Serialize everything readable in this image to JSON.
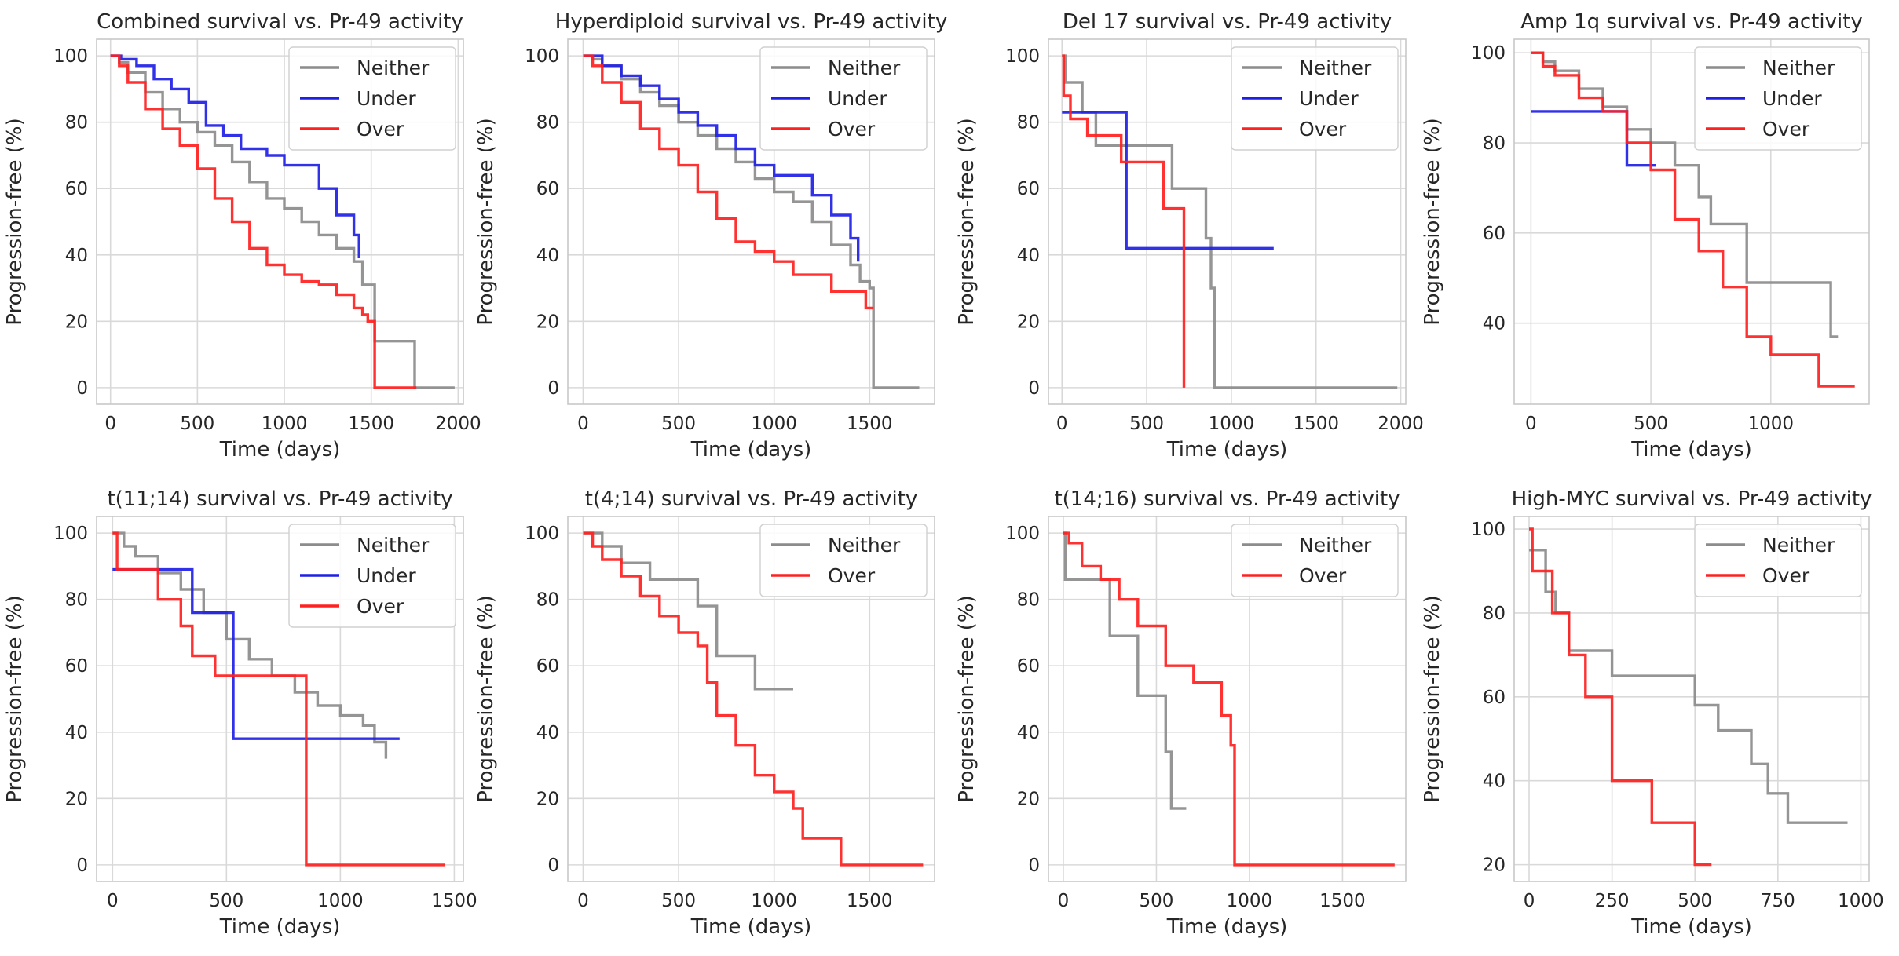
{
  "chart_data": [
    {
      "type": "line",
      "title": "Combined survival vs. Pr-49 activity",
      "xlabel": "Time (days)",
      "ylabel": "Progression-free (%)",
      "xlim": [
        -80,
        2030
      ],
      "ylim": [
        -5,
        105
      ],
      "xticks": [
        0,
        500,
        1000,
        1500,
        2000
      ],
      "yticks": [
        0,
        20,
        40,
        60,
        80,
        100
      ],
      "grid": true,
      "legend_position": "top-right",
      "series": [
        {
          "name": "Neither",
          "color": "#8c8c8c",
          "x": [
            0,
            50,
            100,
            200,
            300,
            400,
            500,
            600,
            700,
            800,
            900,
            1000,
            1100,
            1200,
            1300,
            1400,
            1450,
            1520,
            1750,
            1980
          ],
          "y": [
            100,
            98,
            95,
            89,
            84,
            80,
            77,
            73,
            68,
            62,
            57,
            54,
            50,
            46,
            42,
            38,
            31,
            14,
            0,
            0
          ]
        },
        {
          "name": "Under",
          "color": "#1f1fe6",
          "x": [
            0,
            60,
            150,
            250,
            350,
            450,
            550,
            650,
            750,
            900,
            1000,
            1050,
            1200,
            1300,
            1400,
            1430
          ],
          "y": [
            100,
            99,
            97,
            93,
            90,
            86,
            79,
            76,
            72,
            70,
            67,
            67,
            60,
            52,
            46,
            39
          ]
        },
        {
          "name": "Over",
          "color": "#ff2020",
          "x": [
            0,
            50,
            100,
            200,
            300,
            400,
            500,
            600,
            700,
            800,
            900,
            1000,
            1100,
            1200,
            1300,
            1400,
            1450,
            1480,
            1520,
            1760
          ],
          "y": [
            100,
            97,
            92,
            84,
            78,
            73,
            66,
            57,
            50,
            42,
            37,
            34,
            32,
            31,
            28,
            24,
            22,
            20,
            0,
            0
          ]
        }
      ]
    },
    {
      "type": "line",
      "title": "Hyperdiploid survival vs. Pr-49 activity",
      "xlabel": "Time (days)",
      "ylabel": "Progression-free (%)",
      "xlim": [
        -80,
        1840
      ],
      "ylim": [
        -5,
        105
      ],
      "xticks": [
        0,
        500,
        1000,
        1500
      ],
      "yticks": [
        0,
        20,
        40,
        60,
        80,
        100
      ],
      "grid": true,
      "legend_position": "top-right",
      "series": [
        {
          "name": "Neither",
          "color": "#8c8c8c",
          "x": [
            0,
            50,
            100,
            200,
            300,
            400,
            500,
            600,
            700,
            800,
            900,
            1000,
            1100,
            1200,
            1300,
            1400,
            1450,
            1500,
            1520,
            1760
          ],
          "y": [
            100,
            99,
            97,
            93,
            89,
            85,
            80,
            76,
            72,
            68,
            63,
            59,
            56,
            50,
            43,
            37,
            32,
            30,
            0,
            0
          ]
        },
        {
          "name": "Under",
          "color": "#1f1fe6",
          "x": [
            0,
            100,
            200,
            300,
            400,
            500,
            600,
            700,
            800,
            900,
            1000,
            1100,
            1200,
            1300,
            1400,
            1440
          ],
          "y": [
            100,
            97,
            94,
            91,
            87,
            83,
            79,
            76,
            72,
            67,
            64,
            64,
            58,
            52,
            45,
            38
          ]
        },
        {
          "name": "Over",
          "color": "#ff2020",
          "x": [
            0,
            50,
            100,
            200,
            300,
            400,
            500,
            600,
            700,
            800,
            900,
            1000,
            1100,
            1200,
            1300,
            1400,
            1480,
            1520
          ],
          "y": [
            100,
            97,
            92,
            86,
            78,
            72,
            67,
            59,
            51,
            44,
            41,
            38,
            34,
            34,
            29,
            29,
            24,
            24
          ]
        }
      ]
    },
    {
      "type": "line",
      "title": "Del 17 survival vs. Pr-49 activity",
      "xlabel": "Time (days)",
      "ylabel": "Progression-free (%)",
      "xlim": [
        -80,
        2030
      ],
      "ylim": [
        -5,
        105
      ],
      "xticks": [
        0,
        500,
        1000,
        1500,
        2000
      ],
      "yticks": [
        0,
        20,
        40,
        60,
        80,
        100
      ],
      "grid": true,
      "legend_position": "top-right",
      "series": [
        {
          "name": "Neither",
          "color": "#8c8c8c",
          "x": [
            0,
            20,
            120,
            200,
            450,
            650,
            850,
            880,
            900,
            1980
          ],
          "y": [
            100,
            92,
            83,
            73,
            73,
            60,
            45,
            30,
            0,
            0
          ]
        },
        {
          "name": "Under",
          "color": "#1f1fe6",
          "x": [
            0,
            380,
            1250
          ],
          "y": [
            83,
            42,
            42
          ]
        },
        {
          "name": "Over",
          "color": "#ff2020",
          "x": [
            0,
            10,
            50,
            150,
            350,
            600,
            720
          ],
          "y": [
            100,
            88,
            81,
            76,
            68,
            54,
            0
          ]
        }
      ]
    },
    {
      "type": "line",
      "title": "Amp 1q survival vs. Pr-49 activity",
      "xlabel": "Time (days)",
      "ylabel": "Progression-free (%)",
      "xlim": [
        -70,
        1410
      ],
      "ylim": [
        22,
        103
      ],
      "xticks": [
        0,
        500,
        1000
      ],
      "yticks": [
        40,
        60,
        80,
        100
      ],
      "grid": true,
      "legend_position": "top-right",
      "series": [
        {
          "name": "Neither",
          "color": "#8c8c8c",
          "x": [
            0,
            50,
            100,
            200,
            300,
            400,
            500,
            600,
            700,
            750,
            900,
            1250,
            1280
          ],
          "y": [
            100,
            98,
            96,
            92,
            88,
            83,
            80,
            75,
            68,
            62,
            49,
            37,
            37
          ]
        },
        {
          "name": "Under",
          "color": "#1f1fe6",
          "x": [
            0,
            380,
            400,
            520
          ],
          "y": [
            87,
            87,
            75,
            75
          ]
        },
        {
          "name": "Over",
          "color": "#ff2020",
          "x": [
            0,
            50,
            100,
            200,
            300,
            400,
            500,
            600,
            700,
            800,
            900,
            1000,
            1200,
            1350
          ],
          "y": [
            100,
            97,
            95,
            90,
            87,
            80,
            74,
            63,
            56,
            48,
            37,
            33,
            26,
            26
          ]
        }
      ]
    },
    {
      "type": "line",
      "title": "t(11;14) survival vs. Pr-49 activity",
      "xlabel": "Time (days)",
      "ylabel": "Progression-free (%)",
      "xlim": [
        -70,
        1540
      ],
      "ylim": [
        -5,
        105
      ],
      "xticks": [
        0,
        500,
        1000,
        1500
      ],
      "yticks": [
        0,
        20,
        40,
        60,
        80,
        100
      ],
      "grid": true,
      "legend_position": "top-right",
      "series": [
        {
          "name": "Neither",
          "color": "#8c8c8c",
          "x": [
            0,
            50,
            100,
            200,
            300,
            400,
            500,
            600,
            700,
            800,
            900,
            1000,
            1100,
            1150,
            1200
          ],
          "y": [
            100,
            96,
            93,
            88,
            83,
            76,
            68,
            62,
            57,
            52,
            48,
            45,
            42,
            37,
            32
          ]
        },
        {
          "name": "Under",
          "color": "#1f1fe6",
          "x": [
            0,
            350,
            530,
            1260
          ],
          "y": [
            89,
            76,
            38,
            38
          ]
        },
        {
          "name": "Over",
          "color": "#ff2020",
          "x": [
            0,
            20,
            200,
            300,
            350,
            450,
            550,
            850,
            1460
          ],
          "y": [
            100,
            89,
            80,
            72,
            63,
            57,
            57,
            0,
            0
          ]
        }
      ]
    },
    {
      "type": "line",
      "title": "t(4;14) survival vs. Pr-49 activity",
      "xlabel": "Time (days)",
      "ylabel": "Progression-free (%)",
      "xlim": [
        -80,
        1840
      ],
      "ylim": [
        -5,
        105
      ],
      "xticks": [
        0,
        500,
        1000,
        1500
      ],
      "yticks": [
        0,
        20,
        40,
        60,
        80,
        100
      ],
      "grid": true,
      "legend_position": "top-right",
      "series": [
        {
          "name": "Neither",
          "color": "#8c8c8c",
          "x": [
            0,
            100,
            200,
            350,
            600,
            700,
            900,
            1100
          ],
          "y": [
            100,
            96,
            91,
            86,
            78,
            63,
            53,
            53
          ]
        },
        {
          "name": "Over",
          "color": "#ff2020",
          "x": [
            0,
            50,
            100,
            200,
            300,
            400,
            500,
            600,
            650,
            700,
            800,
            900,
            1000,
            1100,
            1150,
            1350,
            1780
          ],
          "y": [
            100,
            96,
            92,
            87,
            81,
            75,
            70,
            66,
            55,
            45,
            36,
            27,
            22,
            17,
            8,
            0,
            0
          ]
        }
      ]
    },
    {
      "type": "line",
      "title": "t(14;16) survival vs. Pr-49 activity",
      "xlabel": "Time (days)",
      "ylabel": "Progression-free (%)",
      "xlim": [
        -80,
        1840
      ],
      "ylim": [
        -5,
        105
      ],
      "xticks": [
        0,
        500,
        1000,
        1500
      ],
      "yticks": [
        0,
        20,
        40,
        60,
        80,
        100
      ],
      "grid": true,
      "legend_position": "top-right",
      "series": [
        {
          "name": "Neither",
          "color": "#8c8c8c",
          "x": [
            0,
            10,
            250,
            400,
            550,
            580,
            660
          ],
          "y": [
            100,
            86,
            69,
            51,
            34,
            17,
            17
          ]
        },
        {
          "name": "Over",
          "color": "#ff2020",
          "x": [
            0,
            30,
            100,
            200,
            300,
            400,
            550,
            700,
            850,
            900,
            920,
            1780
          ],
          "y": [
            100,
            97,
            90,
            86,
            80,
            72,
            60,
            55,
            45,
            36,
            0,
            0
          ]
        }
      ]
    },
    {
      "type": "line",
      "title": "High-MYC survival vs. Pr-49 activity",
      "xlabel": "Time (days)",
      "ylabel": "Progression-free (%)",
      "xlim": [
        -45,
        1025
      ],
      "ylim": [
        16,
        103
      ],
      "xticks": [
        0,
        250,
        500,
        750,
        1000
      ],
      "yticks": [
        20,
        40,
        60,
        80,
        100
      ],
      "grid": true,
      "legend_position": "top-right",
      "series": [
        {
          "name": "Neither",
          "color": "#8c8c8c",
          "x": [
            0,
            50,
            80,
            120,
            250,
            500,
            570,
            670,
            720,
            780,
            960
          ],
          "y": [
            95,
            85,
            80,
            71,
            65,
            58,
            52,
            44,
            37,
            30,
            30
          ]
        },
        {
          "name": "Over",
          "color": "#ff2020",
          "x": [
            0,
            10,
            70,
            120,
            170,
            250,
            370,
            500,
            550
          ],
          "y": [
            100,
            90,
            80,
            70,
            60,
            40,
            30,
            20,
            20
          ]
        }
      ]
    }
  ]
}
